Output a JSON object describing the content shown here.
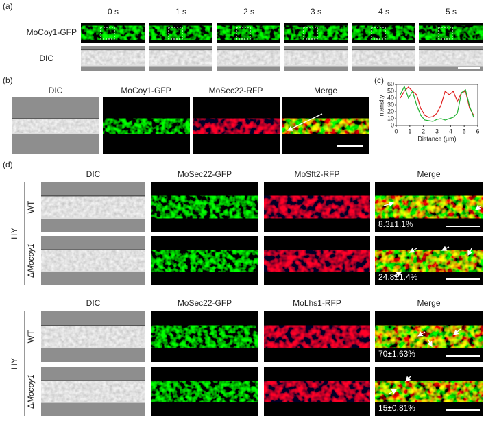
{
  "panel_a": {
    "label": "(a)",
    "time_labels": [
      "0 s",
      "1 s",
      "2 s",
      "3 s",
      "4 s",
      "5 s"
    ],
    "row_labels": [
      "MoCoy1-GFP",
      "DIC"
    ]
  },
  "panel_b": {
    "label": "(b)",
    "column_labels": [
      "DIC",
      "MoCoy1-GFP",
      "MoSec22-RFP",
      "Merge"
    ]
  },
  "chart_data": {
    "type": "line",
    "label": "(c)",
    "y_label": "intensity",
    "x_label": "Distance (μm)",
    "x": [
      0.3,
      0.6,
      0.9,
      1.2,
      1.5,
      1.8,
      2.1,
      2.4,
      2.7,
      3.0,
      3.3,
      3.6,
      3.9,
      4.2,
      4.5,
      4.8,
      5.1,
      5.4,
      5.7
    ],
    "series": [
      {
        "color": "#e02020",
        "values": [
          40,
          50,
          56,
          50,
          45,
          25,
          15,
          12,
          13,
          18,
          30,
          50,
          45,
          50,
          35,
          48,
          50,
          25,
          15
        ]
      },
      {
        "color": "#20b030",
        "values": [
          45,
          57,
          40,
          50,
          30,
          15,
          8,
          7,
          6,
          9,
          10,
          8,
          10,
          12,
          18,
          48,
          52,
          28,
          12
        ]
      }
    ],
    "xlim": [
      0,
      6
    ],
    "xticks": [
      0,
      1,
      2,
      3,
      4,
      5,
      6
    ],
    "ylim": [
      0,
      60
    ],
    "yticks": [
      0,
      10,
      20,
      30,
      40,
      50,
      60
    ]
  },
  "panel_d": {
    "label": "(d)",
    "blocks": [
      {
        "column_labels": [
          "DIC",
          "MoSec22-GFP",
          "MoSft2-RFP",
          "Merge"
        ],
        "group_label": "HY",
        "rows": [
          {
            "label": "WT",
            "percentage": "8.3±1.1%"
          },
          {
            "symbol": "Δ",
            "label": "Mocoy1",
            "percentage": "24.8±1.4%"
          }
        ]
      },
      {
        "column_labels": [
          "DIC",
          "MoSec22-GFP",
          "MoLhs1-RFP",
          "Merge"
        ],
        "group_label": "HY",
        "rows": [
          {
            "label": "WT",
            "percentage": "70±1.63%"
          },
          {
            "symbol": "Δ",
            "label": "Mocoy1",
            "percentage": "15±0.81%"
          }
        ]
      }
    ]
  }
}
